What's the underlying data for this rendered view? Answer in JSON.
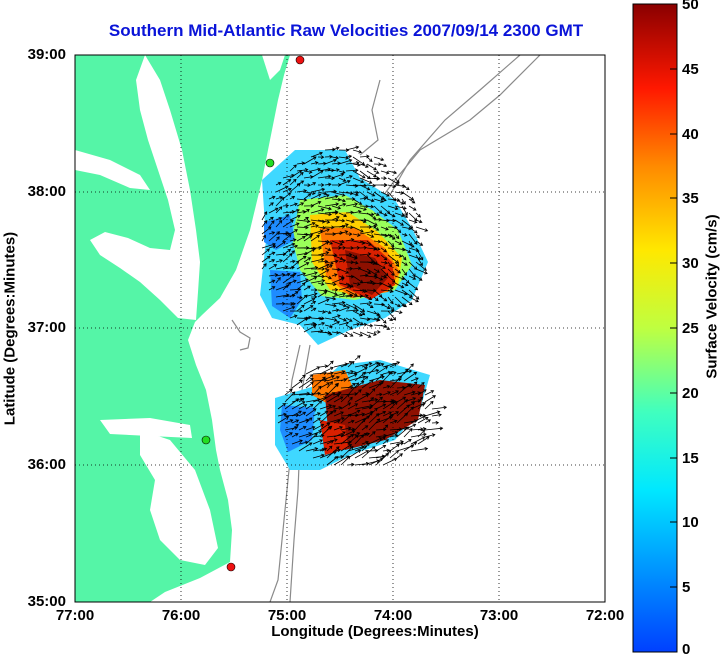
{
  "title": "Southern Mid-Atlantic Raw Velocities 2007/09/14 2300 GMT",
  "axes": {
    "xlabel": "Longitude (Degrees:Minutes)",
    "ylabel": "Latitude (Degrees:Minutes)",
    "x_ticks": [
      "77:00",
      "76:00",
      "75:00",
      "74:00",
      "73:00",
      "72:00"
    ],
    "y_ticks": [
      "39:00",
      "38:00",
      "37:00",
      "36:00",
      "35:00"
    ]
  },
  "colorbar": {
    "label": "Surface Velocity (cm/s)",
    "ticks": [
      "50",
      "45",
      "40",
      "35",
      "30",
      "25",
      "20",
      "15",
      "10",
      "5",
      "0"
    ],
    "range": [
      0,
      50
    ],
    "colormap": "jet"
  },
  "colors": {
    "land": "#55f5a7",
    "title": "#0a14d8",
    "bathymetry": "#8a8a8a",
    "arrows": "#000000",
    "station_green": "#22dd22",
    "station_red": "#ee1111"
  },
  "map_extent": {
    "lon_west": -77.0,
    "lon_east": -72.0,
    "lat_south": 35.0,
    "lat_north": 39.0
  },
  "grid": true
}
